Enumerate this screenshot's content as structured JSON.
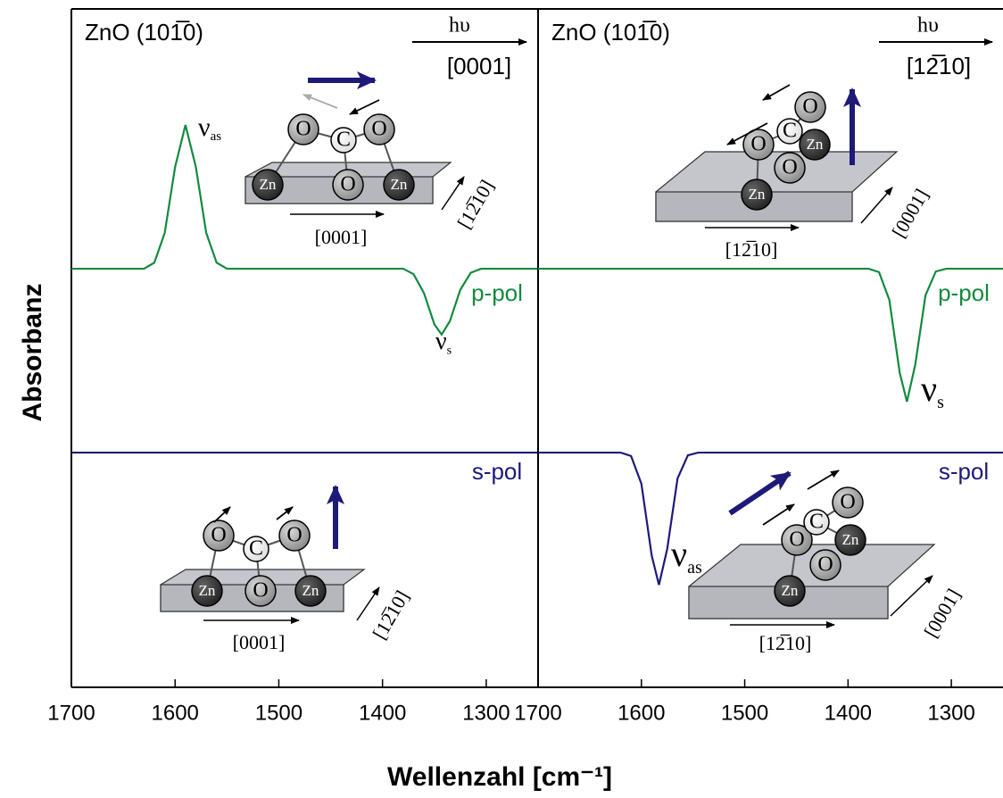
{
  "axis_labels": {
    "x": "Wellenzahl [cm⁻¹]",
    "y": "Absorbanz"
  },
  "chart_data": [
    {
      "type": "line",
      "title": "ZnO (101̅0)",
      "photon": "hυ",
      "beam_direction": "[0001]",
      "xlim": [
        1700,
        1250
      ],
      "xticks": [
        1700,
        1600,
        1500,
        1400,
        1300
      ],
      "ylim": [
        0,
        100
      ],
      "series": [
        {
          "name": "p-pol",
          "color": "#138a3e",
          "x": [
            1700,
            1630,
            1620,
            1610,
            1600,
            1590,
            1580,
            1570,
            1560,
            1550,
            1380,
            1370,
            1360,
            1350,
            1343,
            1335,
            1325,
            1315,
            1305,
            1250
          ],
          "values": [
            61.7,
            61.7,
            62.6,
            67.0,
            76.7,
            82.9,
            76.7,
            67.0,
            62.6,
            61.7,
            61.7,
            60.9,
            58.1,
            53.5,
            52.0,
            54.0,
            58.6,
            61.1,
            61.7,
            61.7
          ]
        },
        {
          "name": "s-pol",
          "color": "#1e1a78",
          "x": [
            1700,
            1250
          ],
          "values": [
            34.6,
            34.6
          ]
        }
      ],
      "annotations": [
        {
          "text": "ν",
          "sub": "as"
        },
        {
          "text": "ν",
          "sub": "s"
        }
      ],
      "insets": [
        {
          "atoms": [
            "O",
            "C",
            "O",
            "Zn",
            "O",
            "Zn"
          ],
          "directions": [
            "[0001]",
            "[12̅10]"
          ]
        },
        {
          "atoms": [
            "O",
            "C",
            "O",
            "Zn",
            "O",
            "Zn"
          ],
          "directions": [
            "[0001]",
            "[12̅10]"
          ]
        }
      ]
    },
    {
      "type": "line",
      "title": "ZnO (101̅0)",
      "photon": "hυ",
      "beam_direction": "[12̅10]",
      "xlim": [
        1700,
        1250
      ],
      "xticks": [
        1700,
        1600,
        1500,
        1400,
        1300
      ],
      "ylim": [
        0,
        100
      ],
      "series": [
        {
          "name": "p-pol",
          "color": "#138a3e",
          "x": [
            1700,
            1380,
            1370,
            1360,
            1350,
            1343,
            1335,
            1325,
            1315,
            1305,
            1250
          ],
          "values": [
            61.7,
            61.7,
            61.2,
            57.1,
            46.4,
            42.1,
            47.5,
            57.8,
            61.3,
            61.7,
            61.7
          ]
        },
        {
          "name": "s-pol",
          "color": "#1e1a78",
          "x": [
            1700,
            1620,
            1610,
            1600,
            1590,
            1583,
            1575,
            1565,
            1555,
            1545,
            1250
          ],
          "values": [
            34.6,
            34.6,
            34.1,
            30.0,
            19.4,
            15.1,
            20.4,
            30.8,
            34.2,
            34.6,
            34.6
          ]
        }
      ],
      "annotations": [
        {
          "text": "ν",
          "sub": "s"
        },
        {
          "text": "ν",
          "sub": "as"
        }
      ],
      "insets": [
        {
          "atoms": [
            "Zn",
            "O",
            "O",
            "Zn",
            "C",
            "O"
          ],
          "directions": [
            "[12̅10]",
            "[0001]"
          ]
        },
        {
          "atoms": [
            "Zn",
            "O",
            "O",
            "Zn",
            "C",
            "O"
          ],
          "directions": [
            "[12̅10]",
            "[0001]"
          ]
        }
      ]
    }
  ]
}
